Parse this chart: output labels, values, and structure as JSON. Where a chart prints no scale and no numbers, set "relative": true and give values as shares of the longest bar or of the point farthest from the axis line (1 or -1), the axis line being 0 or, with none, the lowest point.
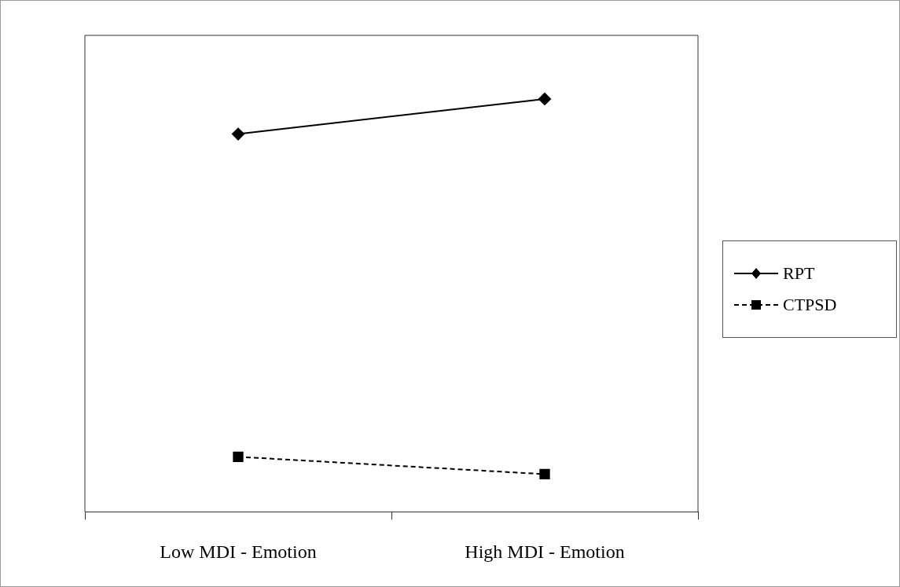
{
  "chart_data": {
    "type": "line",
    "relative": true,
    "categories": [
      "Low MDI - Emotion",
      "High MDI - Emotion"
    ],
    "series": [
      {
        "name": "RPT",
        "color": "#000000",
        "values": [
          0.915,
          1
        ],
        "marker": "diamond",
        "line_style": "solid"
      },
      {
        "name": "CTPSD",
        "color": "#000000",
        "values": [
          0.133,
          0.091
        ],
        "marker": "square",
        "line_style": "dashed"
      }
    ],
    "legend": "right",
    "grid": false
  }
}
